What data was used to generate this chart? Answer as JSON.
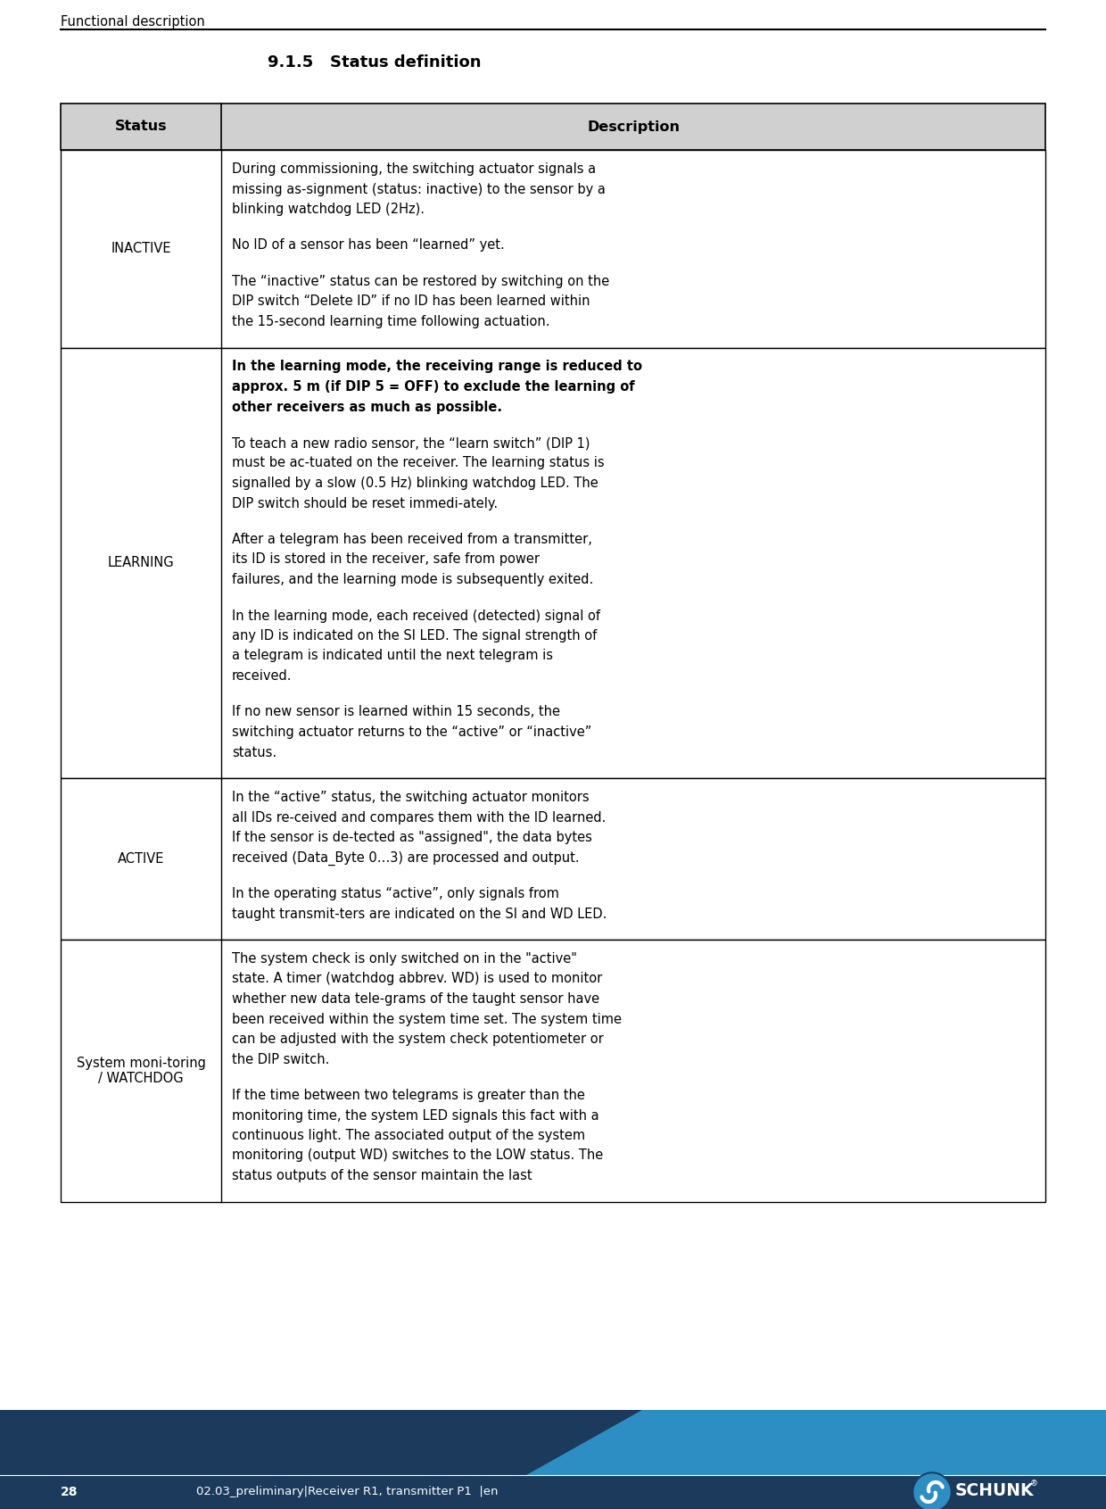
{
  "page_title": "Functional description",
  "section_title": "9.1.5   Status definition",
  "header_bg": "#d0d0d0",
  "col1_header": "Status",
  "col2_header": "Description",
  "footer_dark": "#1b3a5c",
  "footer_light": "#2d8ec4",
  "footer_page": "28",
  "footer_center": "02.03_preliminary|Receiver R1, transmitter P1  |en",
  "table_border": "#000000",
  "bg_color": "#ffffff",
  "rows": [
    {
      "status": "INACTIVE",
      "paragraphs": [
        {
          "text": "During commissioning, the switching actuator signals a missing as-signment (status: inactive) to the sensor by a blinking watchdog LED (2Hz).",
          "bold": false
        },
        {
          "text": "No ID of a sensor has been “learned” yet.",
          "bold": false
        },
        {
          "text": "The “inactive” status can be restored by switching on the DIP switch “Delete ID” if no ID has been learned within the 15-second learning time following actuation.",
          "bold": false
        }
      ]
    },
    {
      "status": "LEARNING",
      "paragraphs": [
        {
          "text": "In the learning mode, the receiving range is reduced to approx. 5 m (if DIP 5 = OFF) to exclude the learning of other receivers as much as possible.",
          "bold": true
        },
        {
          "text": "To teach a new radio sensor, the “learn switch” (DIP 1) must be ac-tuated on the receiver. The learning status is signalled by a slow (0.5 Hz) blinking watchdog LED. The DIP switch should be reset immedi-ately.",
          "bold": false
        },
        {
          "text": "After a telegram has been received from a transmitter, its ID is stored in the receiver, safe from power failures, and the learning mode is subsequently exited.",
          "bold": false
        },
        {
          "text": "In the learning mode, each received (detected) signal of any ID is indicated on the SI LED. The signal strength of a telegram is indicated until the next telegram is received.",
          "bold": false
        },
        {
          "text": "If no new sensor is learned within 15 seconds, the switching actuator returns to the “active” or “inactive” status.",
          "bold": false
        }
      ]
    },
    {
      "status": "ACTIVE",
      "paragraphs": [
        {
          "text": "In the “active” status, the switching actuator monitors all IDs re-ceived and compares them with the ID learned. If the sensor is de-tected as \"assigned\", the data bytes received (Data_Byte 0…3) are processed and output.",
          "bold": false
        },
        {
          "text": "In the operating status “active”, only signals from taught transmit-ters are indicated on the SI and WD LED.",
          "bold": false
        }
      ]
    },
    {
      "status": "System moni-toring\n/ WATCHDOG",
      "paragraphs": [
        {
          "text": "The system check is only switched on in the \"active\" state. A timer (watchdog abbrev. WD) is used to monitor whether new data tele-grams of the taught sensor have been received within the system time set. The system time can be adjusted with the system check potentiometer or the DIP switch.",
          "bold": false
        },
        {
          "text": "If the time between two telegrams is greater than the monitoring time, the system LED signals this fact with a continuous light. The associated output of the system monitoring (output WD) switches to the LOW status. The status outputs of the sensor maintain the last",
          "bold": false
        }
      ]
    }
  ]
}
